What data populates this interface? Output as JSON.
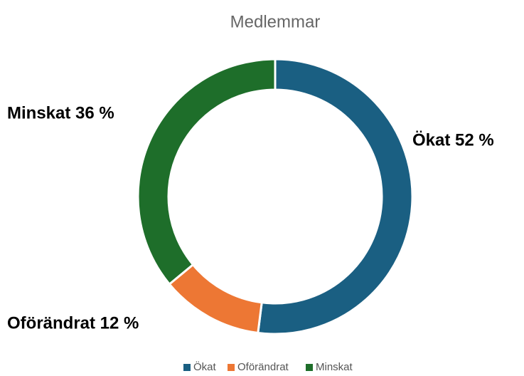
{
  "chart_data": {
    "type": "pie",
    "title": "Medlemmar",
    "categories": [
      "Ökat",
      "Oförändrat",
      "Minskat"
    ],
    "values": [
      52,
      12,
      36
    ],
    "value_labels": [
      "Ökat 52 %",
      "Oförändrat 12 %",
      "Minskat 36 %"
    ],
    "colors": [
      "#1a5f82",
      "#ed7734",
      "#1e6e2a"
    ],
    "legend": "bottom"
  }
}
